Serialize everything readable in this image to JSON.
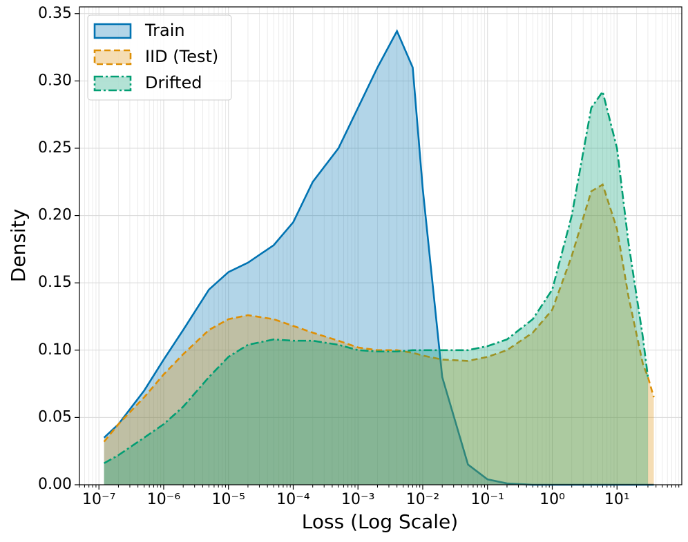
{
  "chart_data": {
    "type": "line",
    "xscale": "log",
    "fill_area": true,
    "grid": true,
    "minor_grid": true,
    "legend": "upper left",
    "x_label": "Loss (Log Scale)",
    "y_label": "Density",
    "x": [
      1.2e-07,
      2e-07,
      5e-07,
      1e-06,
      2e-06,
      5e-06,
      1e-05,
      2e-05,
      5e-05,
      0.0001,
      0.0002,
      0.0005,
      0.001,
      0.002,
      0.004,
      0.007,
      0.01,
      0.02,
      0.05,
      0.1,
      0.2,
      0.5,
      1,
      2,
      4,
      6,
      10,
      15,
      25,
      30,
      37
    ],
    "series": [
      {
        "name": "Train",
        "color": "#0173b2",
        "dash": "solid",
        "values": [
          0.035,
          0.045,
          0.07,
          0.093,
          0.115,
          0.145,
          0.158,
          0.165,
          0.178,
          0.195,
          0.225,
          0.25,
          0.28,
          0.31,
          0.337,
          0.31,
          0.22,
          0.08,
          0.015,
          0.004,
          0.001,
          0,
          0,
          0,
          0,
          0,
          0,
          0,
          0,
          0,
          0
        ]
      },
      {
        "name": "IID (Test)",
        "color": "#de8f05",
        "dash": "dashed",
        "values": [
          0.032,
          0.045,
          0.065,
          0.082,
          0.097,
          0.115,
          0.123,
          0.126,
          0.123,
          0.118,
          0.113,
          0.107,
          0.102,
          0.1,
          0.1,
          0.098,
          0.096,
          0.093,
          0.092,
          0.095,
          0.1,
          0.113,
          0.13,
          0.17,
          0.218,
          0.223,
          0.19,
          0.14,
          0.09,
          0.08,
          0.065
        ]
      },
      {
        "name": "Drifted",
        "color": "#029e73",
        "dash": "dashdot",
        "values": [
          0.016,
          0.022,
          0.035,
          0.045,
          0.058,
          0.08,
          0.095,
          0.104,
          0.108,
          0.107,
          0.107,
          0.104,
          0.1,
          0.099,
          0.099,
          0.1,
          0.1,
          0.1,
          0.1,
          0.103,
          0.108,
          0.123,
          0.145,
          0.2,
          0.28,
          0.292,
          0.25,
          0.18,
          0.11,
          0.08,
          null
        ]
      }
    ],
    "xlim": [
      5e-08,
      100
    ],
    "xticks": [
      {
        "value": 1e-07,
        "label": "10⁻⁷"
      },
      {
        "value": 1e-06,
        "label": "10⁻⁶"
      },
      {
        "value": 1e-05,
        "label": "10⁻⁵"
      },
      {
        "value": 0.0001,
        "label": "10⁻⁴"
      },
      {
        "value": 0.001,
        "label": "10⁻³"
      },
      {
        "value": 0.01,
        "label": "10⁻²"
      },
      {
        "value": 0.1,
        "label": "10⁻¹"
      },
      {
        "value": 1,
        "label": "10⁰"
      },
      {
        "value": 10,
        "label": "10¹"
      }
    ],
    "ylim": [
      0,
      0.355
    ],
    "yticks": [
      {
        "value": 0,
        "label": "0.00"
      },
      0.05,
      {
        "value": 0.1,
        "label": "0.10"
      },
      0.15,
      {
        "value": 0.2,
        "label": "0.20"
      },
      0.25,
      {
        "value": 0.3,
        "label": "0.30"
      },
      0.35
    ]
  }
}
